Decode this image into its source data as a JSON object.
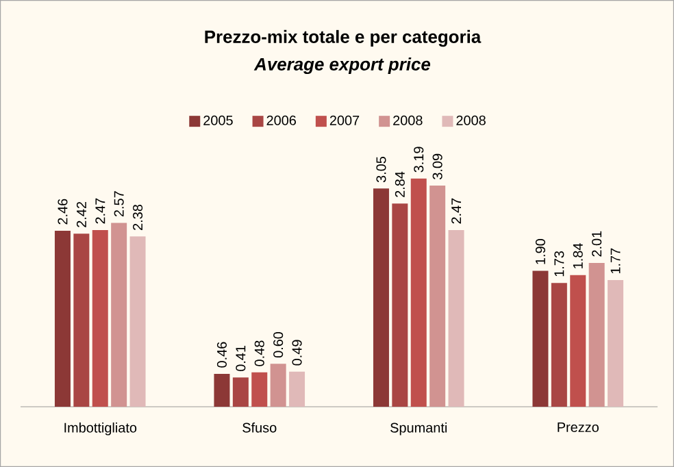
{
  "chart_data": {
    "type": "bar",
    "title": "Prezzo-mix totale e per categoria",
    "subtitle": "*Average export price*",
    "categories": [
      "Imbottigliato",
      "Sfuso",
      "Spumanti",
      "Prezzo"
    ],
    "series": [
      {
        "name": "2005",
        "color": "#8c3836",
        "values": [
          2.46,
          0.46,
          3.05,
          1.9
        ],
        "value_labels": [
          "2.46",
          "0.46",
          "3.05",
          "1.90"
        ]
      },
      {
        "name": "2006",
        "color": "#a94644",
        "values": [
          2.42,
          0.41,
          2.84,
          1.73
        ],
        "value_labels": [
          "2.42",
          "0.41",
          "2.84",
          "1.73"
        ]
      },
      {
        "name": "2007",
        "color": "#c0504d",
        "values": [
          2.47,
          0.48,
          3.19,
          1.84
        ],
        "value_labels": [
          "2.47",
          "0.48",
          "3.19",
          "1.84"
        ]
      },
      {
        "name": "2008",
        "color": "#d19391",
        "values": [
          2.57,
          0.6,
          3.09,
          2.01
        ],
        "value_labels": [
          "2.57",
          "0.60",
          "3.09",
          "2.01"
        ]
      },
      {
        "name": "2008",
        "color": "#e0b9b8",
        "values": [
          2.38,
          0.49,
          2.47,
          1.77
        ],
        "value_labels": [
          "2.38",
          "0.49",
          "2.47",
          "1.77"
        ]
      }
    ],
    "legend": "top"
  }
}
